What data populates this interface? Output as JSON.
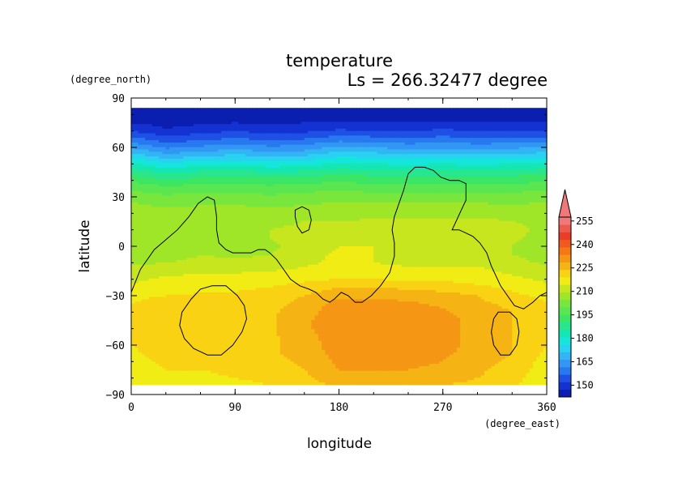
{
  "chart_data": {
    "type": "heatmap",
    "title": "temperature",
    "subtitle": "Ls = 266.32477 degree",
    "xlabel": "longitude",
    "ylabel": "latitude",
    "x_unit": "(degree_east)",
    "y_unit": "(degree_north)",
    "xlim": [
      0,
      360
    ],
    "ylim": [
      -90,
      90
    ],
    "x_ticks": [
      "0",
      "90",
      "180",
      "270",
      "360"
    ],
    "y_ticks": [
      "90",
      "60",
      "30",
      "0",
      "−30",
      "−60",
      "−90"
    ],
    "colorbar": {
      "levels": [
        145,
        150,
        155,
        160,
        165,
        170,
        175,
        180,
        185,
        190,
        195,
        200,
        205,
        210,
        215,
        220,
        225,
        230,
        235,
        240,
        245,
        250,
        255,
        260
      ],
      "labels": [
        "150",
        "165",
        "180",
        "195",
        "210",
        "225",
        "240",
        "255"
      ],
      "colors": [
        "#0a1eb0",
        "#1432d2",
        "#1e50e6",
        "#2878f0",
        "#3296f5",
        "#32b4f5",
        "#28d2f0",
        "#14e6dc",
        "#14e6b4",
        "#28e68c",
        "#3ce664",
        "#5ae650",
        "#78e63c",
        "#a0e628",
        "#c8e61e",
        "#f0ec14",
        "#fad214",
        "#f5b414",
        "#f59614",
        "#f57814",
        "#f05a1e",
        "#eb3c28",
        "#eb5a4b",
        "#f07878"
      ],
      "extend": "max"
    },
    "latitudes": [
      84,
      80,
      75,
      70,
      65,
      60,
      55,
      50,
      45,
      40,
      35,
      30,
      25,
      20,
      15,
      10,
      5,
      0,
      -5,
      -10,
      -15,
      -20,
      -25,
      -30,
      -35,
      -40,
      -45,
      -50,
      -55,
      -60,
      -65,
      -70,
      -75,
      -80,
      -84
    ],
    "longitudes": [
      0,
      30,
      60,
      90,
      120,
      150,
      180,
      210,
      240,
      270,
      300,
      330,
      360
    ],
    "values": [
      [
        145,
        145,
        145,
        145,
        145,
        145,
        145,
        145,
        145,
        145,
        145,
        145,
        145
      ],
      [
        147,
        147,
        147,
        147,
        147,
        147,
        147,
        147,
        147,
        147,
        147,
        147,
        147
      ],
      [
        150,
        148,
        149,
        150,
        149,
        150,
        150,
        150,
        150,
        151,
        150,
        150,
        150
      ],
      [
        155,
        151,
        153,
        155,
        153,
        154,
        156,
        155,
        155,
        156,
        155,
        155,
        155
      ],
      [
        162,
        157,
        159,
        161,
        159,
        160,
        163,
        162,
        161,
        162,
        161,
        161,
        162
      ],
      [
        170,
        164,
        166,
        168,
        166,
        167,
        171,
        170,
        168,
        169,
        168,
        169,
        170
      ],
      [
        178,
        172,
        174,
        176,
        174,
        175,
        179,
        178,
        176,
        177,
        176,
        177,
        178
      ],
      [
        186,
        181,
        183,
        184,
        182,
        183,
        186,
        185,
        184,
        185,
        184,
        185,
        186
      ],
      [
        193,
        189,
        191,
        192,
        190,
        191,
        193,
        192,
        191,
        192,
        191,
        192,
        193
      ],
      [
        199,
        196,
        197,
        198,
        197,
        198,
        199,
        198,
        198,
        198,
        198,
        198,
        199
      ],
      [
        204,
        202,
        203,
        203,
        202,
        203,
        204,
        203,
        203,
        203,
        203,
        203,
        204
      ],
      [
        208,
        206,
        207,
        207,
        206,
        207,
        208,
        207,
        207,
        207,
        207,
        207,
        208
      ],
      [
        211,
        209,
        210,
        210,
        209,
        210,
        211,
        211,
        211,
        211,
        211,
        210,
        211
      ],
      [
        213,
        212,
        212,
        213,
        212,
        213,
        213,
        213,
        214,
        213,
        214,
        213,
        213
      ],
      [
        214,
        214,
        214,
        215,
        214,
        215,
        215,
        216,
        216,
        216,
        216,
        215,
        214
      ],
      [
        214,
        214,
        215,
        214,
        215,
        216,
        217,
        217,
        218,
        218,
        217,
        216,
        214
      ],
      [
        213,
        214,
        215,
        214,
        215,
        217,
        219,
        219,
        219,
        219,
        218,
        216,
        213
      ],
      [
        212,
        213,
        215,
        213,
        214,
        217,
        220,
        220,
        219,
        219,
        218,
        215,
        212
      ],
      [
        212,
        213,
        215,
        214,
        215,
        218,
        221,
        220,
        219,
        219,
        218,
        215,
        212
      ],
      [
        214,
        215,
        216,
        216,
        217,
        219,
        221,
        220,
        219,
        219,
        219,
        217,
        214
      ],
      [
        217,
        218,
        219,
        219,
        220,
        221,
        222,
        222,
        221,
        221,
        221,
        219,
        217
      ],
      [
        219,
        221,
        222,
        223,
        223,
        224,
        225,
        225,
        224,
        224,
        223,
        221,
        219
      ],
      [
        221,
        222,
        223,
        224,
        225,
        227,
        230,
        230,
        229,
        228,
        226,
        224,
        221
      ],
      [
        224,
        225,
        226,
        226,
        227,
        230,
        234,
        234,
        233,
        232,
        230,
        226,
        224
      ],
      [
        225,
        227,
        227,
        228,
        228,
        232,
        237,
        237,
        236,
        234,
        231,
        229,
        225
      ],
      [
        226,
        228,
        228,
        229,
        229,
        233,
        238,
        238,
        237,
        236,
        232,
        230,
        226
      ],
      [
        227,
        228,
        228,
        229,
        229,
        234,
        238,
        238,
        238,
        237,
        233,
        230,
        227
      ],
      [
        226,
        228,
        228,
        229,
        229,
        234,
        238,
        238,
        238,
        237,
        233,
        230,
        226
      ],
      [
        225,
        228,
        227,
        229,
        229,
        233,
        238,
        238,
        238,
        237,
        233,
        230,
        225
      ],
      [
        225,
        228,
        227,
        229,
        229,
        232,
        238,
        238,
        238,
        237,
        233,
        230,
        225
      ],
      [
        224,
        227,
        227,
        229,
        229,
        232,
        237,
        237,
        237,
        236,
        233,
        230,
        224
      ],
      [
        223,
        226,
        226,
        228,
        228,
        231,
        236,
        236,
        236,
        235,
        232,
        229,
        223
      ],
      [
        222,
        225,
        225,
        226,
        227,
        230,
        235,
        235,
        235,
        234,
        231,
        228,
        222
      ],
      [
        221,
        224,
        224,
        225,
        226,
        229,
        233,
        233,
        233,
        232,
        230,
        227,
        221
      ],
      [
        220,
        223,
        223,
        224,
        225,
        228,
        231,
        231,
        231,
        230,
        229,
        226,
        220
      ]
    ],
    "coastline": [
      [
        0,
        -28
      ],
      [
        8,
        -14
      ],
      [
        20,
        -2
      ],
      [
        30,
        4
      ],
      [
        40,
        10
      ],
      [
        50,
        18
      ],
      [
        58,
        26
      ],
      [
        66,
        30
      ],
      [
        72,
        28
      ],
      [
        74,
        18
      ],
      [
        74,
        10
      ],
      [
        76,
        2
      ],
      [
        82,
        -2
      ],
      [
        88,
        -4
      ],
      [
        96,
        -4
      ],
      [
        104,
        -4
      ],
      [
        110,
        -2
      ],
      [
        116,
        -2
      ],
      [
        120,
        -4
      ],
      [
        126,
        -8
      ],
      [
        132,
        -14
      ],
      [
        138,
        -20
      ],
      [
        146,
        -24
      ],
      [
        154,
        -26
      ],
      [
        160,
        -28
      ],
      [
        166,
        -32
      ],
      [
        172,
        -34
      ],
      [
        176,
        -32
      ],
      [
        182,
        -28
      ],
      [
        188,
        -30
      ],
      [
        194,
        -34
      ],
      [
        200,
        -34
      ],
      [
        208,
        -30
      ],
      [
        216,
        -24
      ],
      [
        224,
        -16
      ],
      [
        228,
        -6
      ],
      [
        228,
        2
      ],
      [
        226,
        10
      ],
      [
        228,
        18
      ],
      [
        232,
        26
      ],
      [
        236,
        34
      ],
      [
        240,
        44
      ],
      [
        246,
        48
      ],
      [
        254,
        48
      ],
      [
        262,
        46
      ],
      [
        268,
        42
      ],
      [
        276,
        40
      ],
      [
        284,
        40
      ],
      [
        290,
        38
      ],
      [
        290,
        28
      ],
      [
        286,
        22
      ],
      [
        282,
        16
      ],
      [
        278,
        10
      ],
      [
        284,
        10
      ],
      [
        290,
        8
      ],
      [
        296,
        6
      ],
      [
        302,
        2
      ],
      [
        308,
        -4
      ],
      [
        312,
        -12
      ],
      [
        316,
        -18
      ],
      [
        320,
        -24
      ],
      [
        326,
        -30
      ],
      [
        332,
        -36
      ],
      [
        340,
        -38
      ],
      [
        348,
        -34
      ],
      [
        354,
        -30
      ],
      [
        360,
        -28
      ]
    ],
    "islands": [
      [
        [
          142,
          22
        ],
        [
          148,
          24
        ],
        [
          154,
          22
        ],
        [
          156,
          16
        ],
        [
          154,
          10
        ],
        [
          148,
          8
        ],
        [
          144,
          12
        ],
        [
          142,
          18
        ],
        [
          142,
          22
        ]
      ],
      [
        [
          70,
          -24
        ],
        [
          82,
          -24
        ],
        [
          92,
          -30
        ],
        [
          98,
          -36
        ],
        [
          100,
          -44
        ],
        [
          96,
          -52
        ],
        [
          88,
          -60
        ],
        [
          78,
          -66
        ],
        [
          66,
          -66
        ],
        [
          54,
          -62
        ],
        [
          46,
          -56
        ],
        [
          42,
          -48
        ],
        [
          44,
          -40
        ],
        [
          52,
          -32
        ],
        [
          60,
          -26
        ],
        [
          70,
          -24
        ]
      ],
      [
        [
          318,
          -40
        ],
        [
          328,
          -40
        ],
        [
          334,
          -44
        ],
        [
          336,
          -52
        ],
        [
          334,
          -60
        ],
        [
          328,
          -66
        ],
        [
          320,
          -66
        ],
        [
          314,
          -60
        ],
        [
          312,
          -52
        ],
        [
          314,
          -44
        ],
        [
          318,
          -40
        ]
      ]
    ]
  }
}
